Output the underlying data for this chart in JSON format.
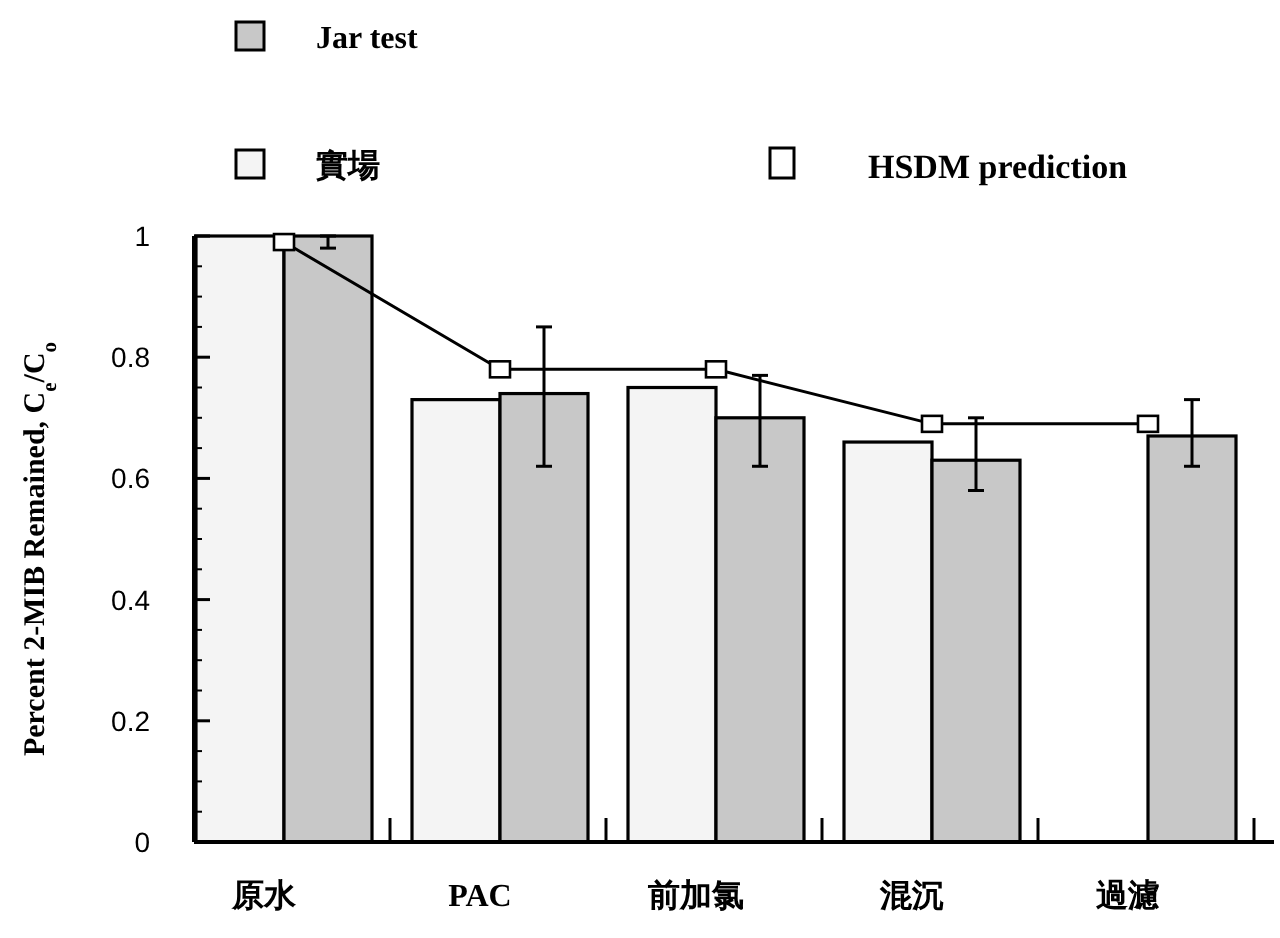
{
  "chart_data": {
    "type": "bar",
    "ylabel": "Percent 2-MIB Remained, C$_{e}$/C$_{o}$",
    "categories": [
      "原水",
      "PAC",
      "前加氯",
      "混沉",
      "過濾"
    ],
    "series": [
      {
        "name": "實場",
        "color": "#f4f4f4",
        "values": [
          1.0,
          0.73,
          0.75,
          0.66,
          null
        ]
      },
      {
        "name": "Jar test",
        "color": "#c8c8c8",
        "values": [
          1.0,
          0.74,
          0.7,
          0.63,
          0.67
        ],
        "errors": [
          [
            0.98,
            1.0
          ],
          [
            0.62,
            0.85
          ],
          [
            0.62,
            0.77
          ],
          [
            0.58,
            0.7
          ],
          [
            0.62,
            0.73
          ]
        ]
      },
      {
        "name": "HSDM prediction",
        "type": "line",
        "color": "#000000",
        "marker": "square",
        "values": [
          0.99,
          0.78,
          0.78,
          0.69,
          0.69
        ]
      }
    ],
    "ylim": [
      0,
      1
    ],
    "yticks": [
      0,
      0.2,
      0.4,
      0.6,
      0.8,
      1
    ],
    "legend": "top",
    "grid": false
  }
}
